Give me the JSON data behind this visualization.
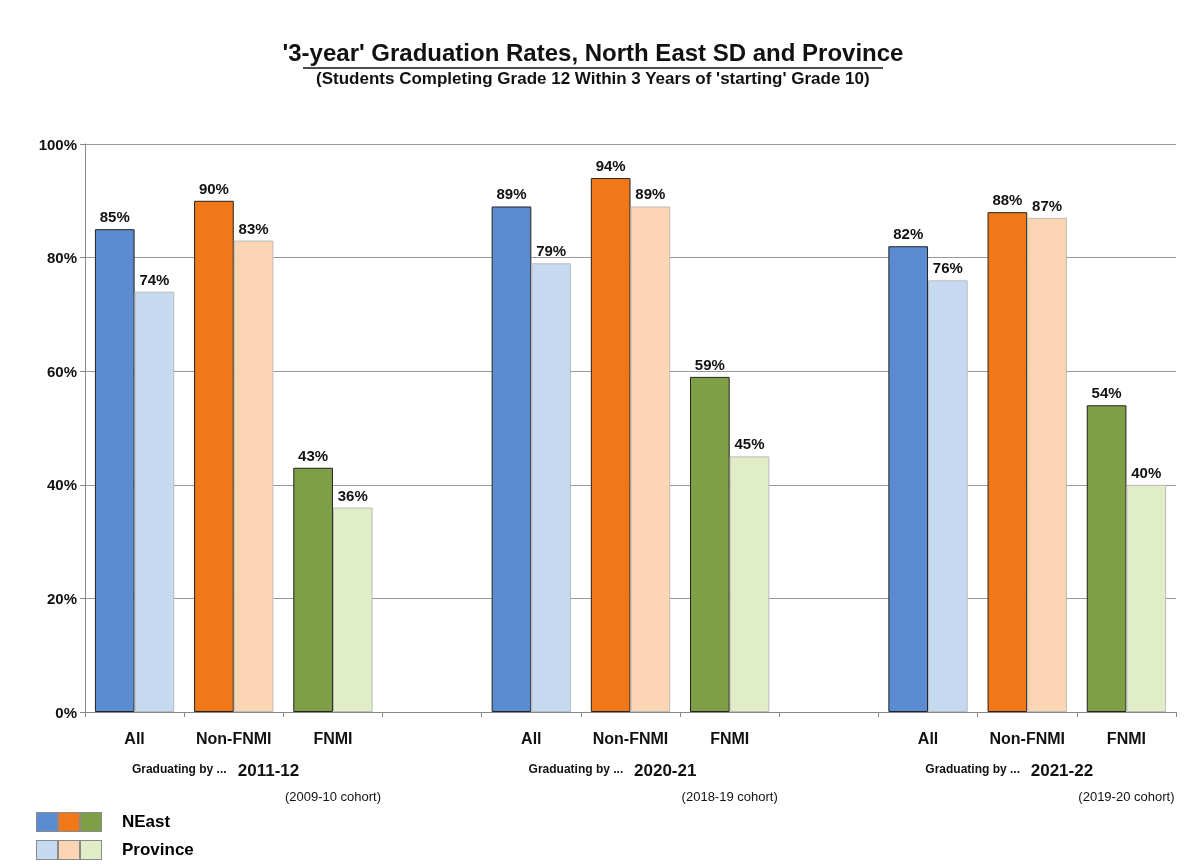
{
  "chart_data": {
    "type": "bar",
    "title": "'3-year' Graduation Rates, North East SD and Province",
    "subtitle": "(Students Completing Grade 12 Within 3 Years of 'starting' Grade 10)",
    "categories": [
      "All",
      "Non-FNMI",
      "FNMI",
      null,
      "All",
      "Non-FNMI",
      "FNMI",
      null,
      "All",
      "Non-FNMI",
      "FNMI"
    ],
    "series": [
      {
        "name": "NEast",
        "values": [
          85,
          90,
          43,
          null,
          89,
          94,
          59,
          null,
          82,
          88,
          54
        ],
        "colors": [
          "#5b8bd0",
          "#f07818",
          "#7f9f47",
          null,
          "#5b8bd0",
          "#f07818",
          "#7f9f47",
          null,
          "#5b8bd0",
          "#f07818",
          "#7f9f47"
        ],
        "value_labels": [
          "85%",
          "90%",
          "43%",
          null,
          "89%",
          "94%",
          "59%",
          null,
          "82%",
          "88%",
          "54%"
        ]
      },
      {
        "name": "Province",
        "values": [
          74,
          83,
          36,
          null,
          79,
          89,
          45,
          null,
          76,
          87,
          40
        ],
        "colors": [
          "#c5d9f1",
          "#fcd5b4",
          "#e0edc6",
          null,
          "#c5d9f1",
          "#fcd5b4",
          "#e0edc6",
          null,
          "#c5d9f1",
          "#fcd5b4",
          "#e0edc6"
        ],
        "value_labels": [
          "74%",
          "83%",
          "36%",
          null,
          "79%",
          "89%",
          "45%",
          null,
          "76%",
          "87%",
          "40%"
        ]
      }
    ],
    "ylim": [
      0,
      100
    ],
    "yticks": [
      {
        "value": 0,
        "label": "0%"
      },
      {
        "value": 20,
        "label": "20%"
      },
      {
        "value": 40,
        "label": "40%"
      },
      {
        "value": 60,
        "label": "60%"
      },
      {
        "value": 80,
        "label": "80%"
      },
      {
        "value": 100,
        "label": "100%"
      }
    ],
    "grid": "y",
    "legend": "bottom left",
    "annotations": [
      "Graduating by ...",
      "2011-12",
      "(2009-10 cohort)",
      "Graduating by ...",
      "2020-21",
      "(2018-19 cohort)",
      "Graduating by ...",
      "2021-22",
      "(2019-20 cohort)"
    ]
  }
}
